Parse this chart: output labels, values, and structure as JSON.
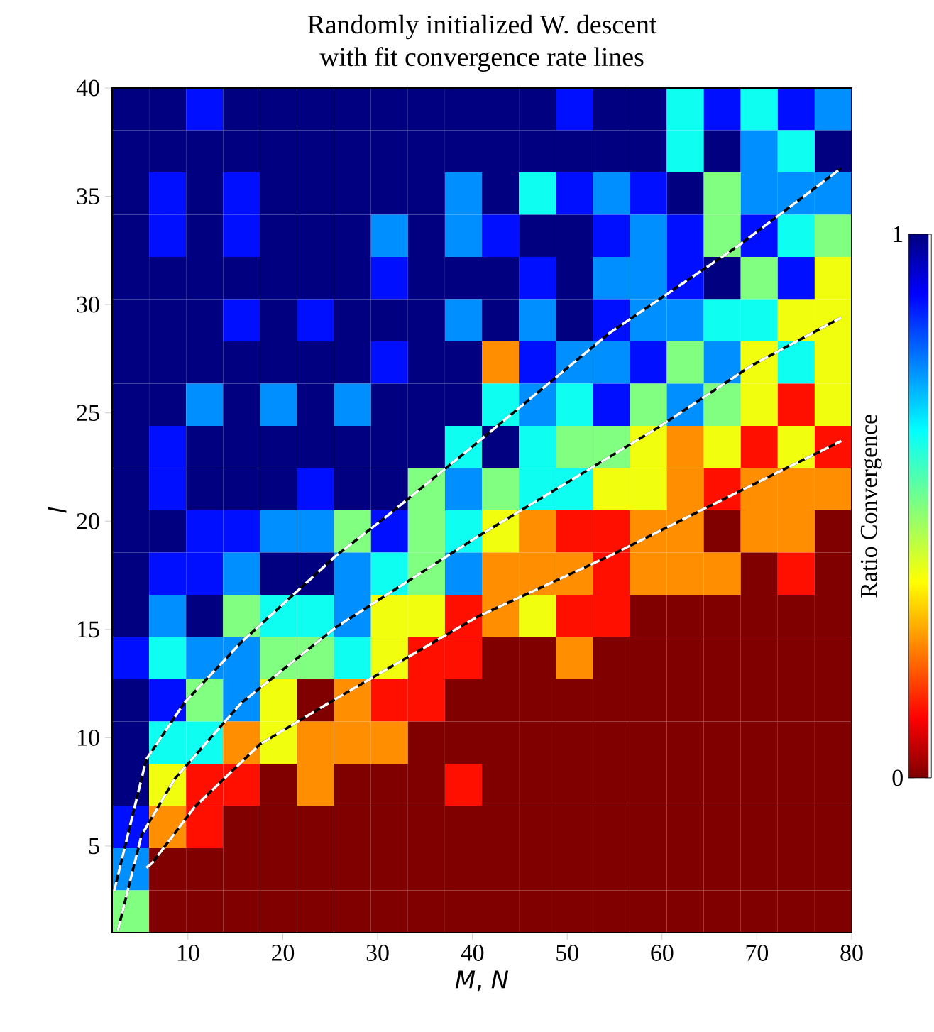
{
  "chart_data": {
    "type": "heatmap",
    "title": "Randomly initialized W. descent",
    "subtitle": "with fit convergence rate lines",
    "xlabel": "*M*, *N*",
    "ylabel": "*l*",
    "clabel": "Ratio Convergence",
    "x": [
      3.95,
      7.85,
      11.75,
      15.65,
      19.55,
      23.45,
      27.35,
      31.25,
      35.15,
      39.05,
      42.95,
      46.85,
      50.75,
      54.65,
      58.55,
      62.45,
      66.35,
      70.25,
      74.15,
      78.05
    ],
    "y": [
      39.025,
      37.075,
      35.125,
      33.175,
      31.225,
      29.275,
      27.325,
      25.375,
      23.425,
      21.475,
      19.525,
      17.575,
      15.625,
      13.675,
      11.725,
      9.775,
      7.825,
      5.875,
      3.925,
      1.975
    ],
    "cells": [
      [
        1,
        1,
        0.875,
        1,
        1,
        1,
        1,
        1,
        1,
        1,
        1,
        1,
        0.875,
        1,
        1,
        0.625,
        0.875,
        0.625,
        0.875,
        0.75
      ],
      [
        1,
        1,
        1,
        1,
        1,
        1,
        1,
        1,
        1,
        1,
        1,
        1,
        1,
        1,
        1,
        0.625,
        1,
        0.75,
        0.625,
        1
      ],
      [
        1,
        0.875,
        1,
        0.875,
        1,
        1,
        1,
        1,
        1,
        0.75,
        1,
        0.625,
        0.875,
        0.75,
        0.875,
        1,
        0.5,
        0.75,
        0.75,
        0.75
      ],
      [
        1,
        0.875,
        1,
        0.875,
        1,
        1,
        1,
        0.75,
        1,
        0.75,
        0.875,
        1,
        1,
        0.875,
        0.75,
        0.875,
        0.5,
        0.875,
        0.625,
        0.5
      ],
      [
        1,
        1,
        1,
        1,
        1,
        1,
        1,
        0.875,
        1,
        1,
        1,
        0.875,
        1,
        0.75,
        0.75,
        0.875,
        1,
        0.5,
        0.875,
        0.375
      ],
      [
        1,
        1,
        1,
        0.875,
        1,
        0.875,
        1,
        1,
        1,
        0.75,
        1,
        0.75,
        1,
        0.875,
        0.75,
        0.75,
        0.625,
        0.625,
        0.375,
        0.375
      ],
      [
        1,
        1,
        1,
        1,
        1,
        1,
        1,
        0.875,
        1,
        1,
        0.25,
        0.875,
        0.75,
        0.75,
        0.875,
        0.5,
        0.75,
        0.375,
        0.625,
        0.375
      ],
      [
        1,
        1,
        0.75,
        1,
        0.75,
        1,
        0.75,
        1,
        1,
        1,
        0.625,
        0.75,
        0.625,
        0.875,
        0.5,
        0.75,
        0.5,
        0.375,
        0.125,
        0.375
      ],
      [
        1,
        0.875,
        1,
        1,
        1,
        1,
        1,
        1,
        1,
        0.625,
        1,
        0.625,
        0.5,
        0.5,
        0.375,
        0.25,
        0.375,
        0.125,
        0.375,
        0.125
      ],
      [
        1,
        0.875,
        1,
        1,
        1,
        0.875,
        1,
        1,
        0.5,
        0.75,
        0.5,
        0.625,
        0.625,
        0.375,
        0.375,
        0.25,
        0.125,
        0.25,
        0.25,
        0.25
      ],
      [
        1,
        1,
        0.875,
        0.875,
        0.75,
        0.75,
        0.5,
        0.875,
        0.5,
        0.625,
        0.375,
        0.25,
        0.125,
        0.125,
        0.25,
        0.25,
        0,
        0.25,
        0.25,
        0
      ],
      [
        1,
        0.875,
        0.875,
        0.75,
        1,
        1,
        0.75,
        0.625,
        0.5,
        0.75,
        0.25,
        0.25,
        0.25,
        0.125,
        0.25,
        0.25,
        0.25,
        0,
        0.125,
        0
      ],
      [
        1,
        0.75,
        1,
        0.5,
        0.625,
        0.625,
        0.75,
        0.375,
        0.375,
        0.125,
        0.25,
        0.375,
        0.125,
        0.125,
        0,
        0,
        0,
        0,
        0,
        0
      ],
      [
        0.875,
        0.625,
        0.75,
        0.75,
        0.5,
        0.5,
        0.625,
        0.375,
        0.125,
        0.125,
        0,
        0,
        0.25,
        0,
        0,
        0,
        0,
        0,
        0,
        0
      ],
      [
        1,
        0.875,
        0.5,
        0.75,
        0.375,
        0,
        0.25,
        0.125,
        0.125,
        0,
        0,
        0,
        0,
        0,
        0,
        0,
        0,
        0,
        0,
        0
      ],
      [
        1,
        0.625,
        0.625,
        0.25,
        0.375,
        0.25,
        0.25,
        0.25,
        0,
        0,
        0,
        0,
        0,
        0,
        0,
        0,
        0,
        0,
        0,
        0
      ],
      [
        1,
        0.375,
        0.125,
        0.125,
        0,
        0.25,
        0,
        0,
        0,
        0.125,
        0,
        0,
        0,
        0,
        0,
        0,
        0,
        0,
        0,
        0
      ],
      [
        0.875,
        0.25,
        0.125,
        0,
        0,
        0,
        0,
        0,
        0,
        0,
        0,
        0,
        0,
        0,
        0,
        0,
        0,
        0,
        0,
        0
      ],
      [
        0.75,
        0,
        0,
        0,
        0,
        0,
        0,
        0,
        0,
        0,
        0,
        0,
        0,
        0,
        0,
        0,
        0,
        0,
        0,
        0
      ],
      [
        0.5,
        0,
        0,
        0,
        0,
        0,
        0,
        0,
        0,
        0,
        0,
        0,
        0,
        0,
        0,
        0,
        0,
        0,
        0,
        0
      ]
    ],
    "xlim": [
      2,
      80
    ],
    "ylim": [
      1,
      40
    ],
    "xticks": [
      10,
      20,
      30,
      40,
      50,
      60,
      70,
      80
    ],
    "yticks": [
      5,
      10,
      15,
      20,
      25,
      30,
      35,
      40
    ],
    "clim": [
      0,
      1
    ],
    "cticks": [
      0,
      1
    ],
    "series": [
      {
        "type": "line",
        "color": "#ffffff",
        "line_style": "dashed",
        "x": [
          2.2,
          5.6,
          9.6,
          15.6,
          25.6,
          30.6,
          39.6,
          54.5,
          68,
          78.9
        ],
        "values": [
          2.9,
          9.0,
          11.6,
          14.4,
          18.4,
          20.1,
          23.3,
          28.7,
          32.7,
          36.3
        ]
      },
      {
        "type": "line",
        "color": "#ffffff",
        "line_style": "dashed",
        "x": [
          2.6,
          5.1,
          8.6,
          15.6,
          25.6,
          40.6,
          59.5,
          69.5,
          78.9
        ],
        "values": [
          1.1,
          5.5,
          8.1,
          11.6,
          15.1,
          19.3,
          24.3,
          27.2,
          29.4
        ]
      },
      {
        "type": "line",
        "color": "#ffffff",
        "line_style": "dashed",
        "x": [
          5.6,
          6.2,
          10.7,
          17.6,
          25.6,
          40.6,
          54.5,
          65.5,
          78.9
        ],
        "values": [
          4.0,
          4.2,
          6.8,
          9.7,
          11.8,
          15.6,
          18.4,
          20.8,
          23.7
        ]
      }
    ]
  }
}
